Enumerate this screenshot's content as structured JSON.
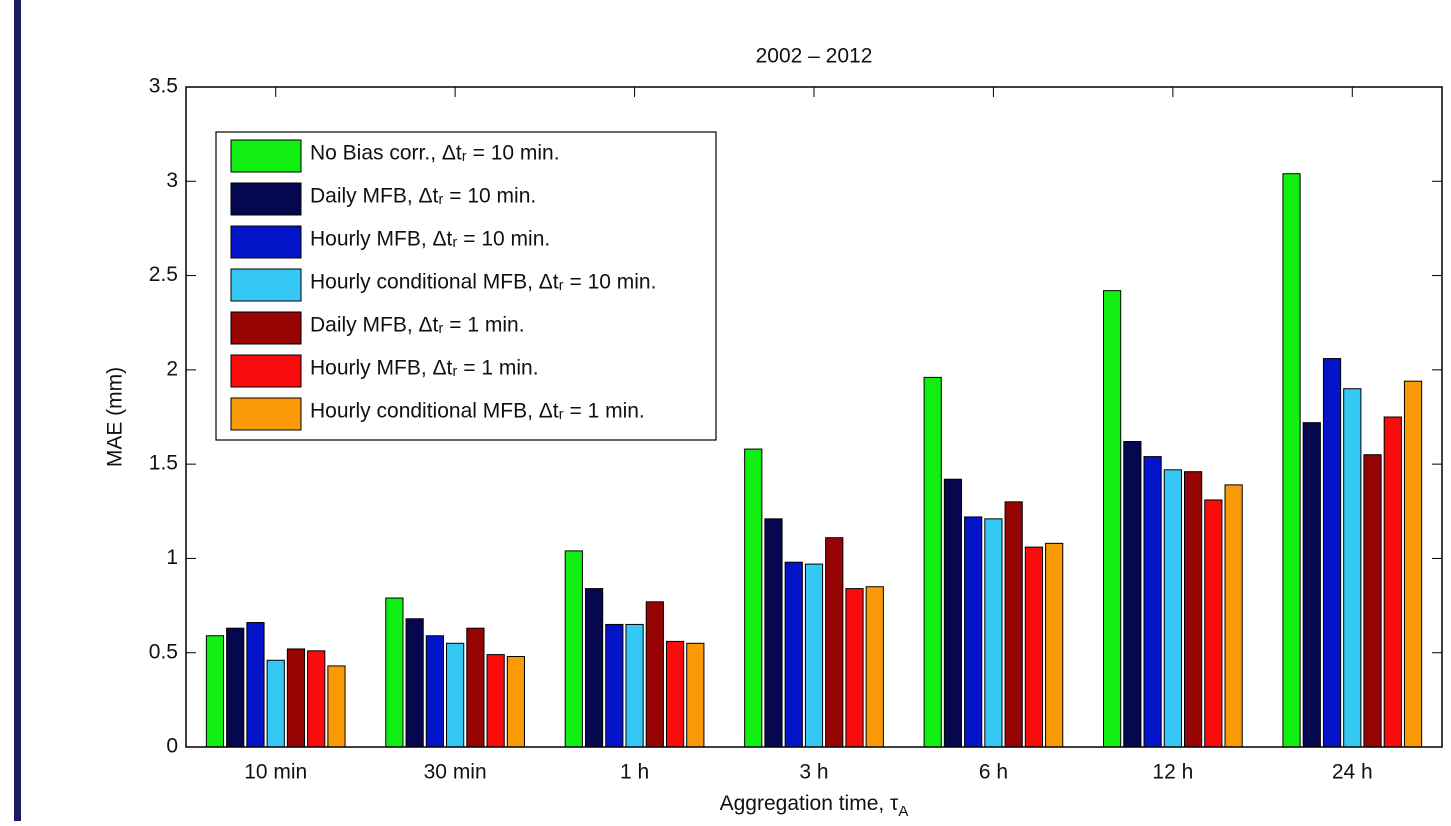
{
  "chart_data": {
    "type": "bar",
    "title": "2002 – 2012",
    "y_label": "MAE (mm)",
    "x_label": {
      "text": "Aggregation time, τ",
      "subscript": "A"
    },
    "categories": [
      "10 min",
      "30 min",
      "1 h",
      "3 h",
      "6 h",
      "12 h",
      "24 h"
    ],
    "ylim": [
      0,
      3.5
    ],
    "yticks": [
      0,
      0.5,
      1,
      1.5,
      2,
      2.5,
      3,
      3.5
    ],
    "legend": "upper left",
    "series": [
      {
        "name": "No Bias corr., Δtᵣ = 10 min.",
        "color": "#11ee11",
        "values": [
          0.59,
          0.79,
          1.04,
          1.58,
          1.96,
          2.42,
          3.04
        ]
      },
      {
        "name": "Daily MFB, Δtᵣ = 10 min.",
        "color": "#06084f",
        "values": [
          0.63,
          0.68,
          0.84,
          1.21,
          1.42,
          1.62,
          1.72
        ]
      },
      {
        "name": "Hourly MFB, Δtᵣ = 10 min.",
        "color": "#0414c8",
        "values": [
          0.66,
          0.59,
          0.65,
          0.98,
          1.22,
          1.54,
          2.06
        ]
      },
      {
        "name": "Hourly conditional MFB, Δtᵣ = 10 min.",
        "color": "#36c8f4",
        "values": [
          0.46,
          0.55,
          0.65,
          0.97,
          1.21,
          1.47,
          1.9
        ]
      },
      {
        "name": "Daily MFB, Δtᵣ = 1 min.",
        "color": "#960404",
        "values": [
          0.52,
          0.63,
          0.77,
          1.11,
          1.3,
          1.46,
          1.55
        ]
      },
      {
        "name": "Hourly MFB, Δtᵣ = 1 min.",
        "color": "#fa0c0c",
        "values": [
          0.51,
          0.49,
          0.56,
          0.84,
          1.06,
          1.31,
          1.75
        ]
      },
      {
        "name": "Hourly conditional MFB, Δtᵣ = 1 min.",
        "color": "#fa9a06",
        "values": [
          0.43,
          0.48,
          0.55,
          0.85,
          1.08,
          1.39,
          1.94
        ]
      }
    ]
  }
}
